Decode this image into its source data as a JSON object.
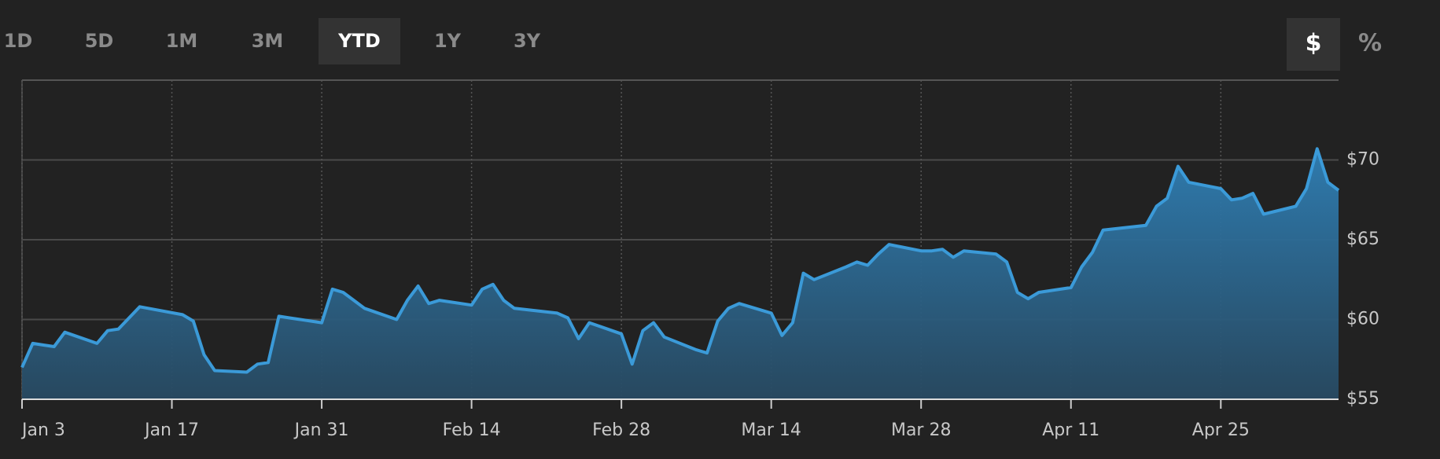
{
  "controls": {
    "ranges": [
      {
        "label": "1D",
        "selected": false
      },
      {
        "label": "5D",
        "selected": false
      },
      {
        "label": "1M",
        "selected": false
      },
      {
        "label": "3M",
        "selected": false
      },
      {
        "label": "YTD",
        "selected": true
      },
      {
        "label": "1Y",
        "selected": false
      },
      {
        "label": "3Y",
        "selected": false
      }
    ],
    "units": [
      {
        "label": "$",
        "selected": true
      },
      {
        "label": "%",
        "selected": false
      }
    ]
  },
  "chart_data": {
    "type": "area",
    "color": "#3b9ad8",
    "x": [
      "Jan 3",
      "Jan 4",
      "Jan 5",
      "Jan 6",
      "Jan 7",
      "Jan 10",
      "Jan 11",
      "Jan 12",
      "Jan 13",
      "Jan 14",
      "Jan 18",
      "Jan 19",
      "Jan 20",
      "Jan 21",
      "Jan 24",
      "Jan 25",
      "Jan 26",
      "Jan 27",
      "Jan 28",
      "Jan 31",
      "Feb 1",
      "Feb 2",
      "Feb 3",
      "Feb 4",
      "Feb 7",
      "Feb 8",
      "Feb 9",
      "Feb 10",
      "Feb 11",
      "Feb 14",
      "Feb 15",
      "Feb 16",
      "Feb 17",
      "Feb 18",
      "Feb 22",
      "Feb 23",
      "Feb 24",
      "Feb 25",
      "Feb 28",
      "Mar 1",
      "Mar 2",
      "Mar 3",
      "Mar 4",
      "Mar 7",
      "Mar 8",
      "Mar 9",
      "Mar 10",
      "Mar 11",
      "Mar 14",
      "Mar 15",
      "Mar 16",
      "Mar 17",
      "Mar 18",
      "Mar 21",
      "Mar 22",
      "Mar 23",
      "Mar 24",
      "Mar 25",
      "Mar 28",
      "Mar 29",
      "Mar 30",
      "Mar 31",
      "Apr 1",
      "Apr 4",
      "Apr 5",
      "Apr 6",
      "Apr 7",
      "Apr 8",
      "Apr 11",
      "Apr 12",
      "Apr 13",
      "Apr 14",
      "Apr 18",
      "Apr 19",
      "Apr 20",
      "Apr 21",
      "Apr 22",
      "Apr 25",
      "Apr 26",
      "Apr 27",
      "Apr 28",
      "Apr 29",
      "May 2",
      "May 3",
      "May 4",
      "May 5",
      "May 6"
    ],
    "values": [
      57.0,
      58.5,
      58.4,
      58.3,
      59.2,
      58.5,
      59.3,
      59.4,
      60.1,
      60.8,
      60.3,
      59.9,
      57.8,
      56.8,
      56.7,
      57.2,
      57.3,
      60.2,
      60.1,
      59.8,
      61.9,
      61.7,
      61.2,
      60.7,
      60.0,
      61.2,
      62.1,
      61.0,
      61.2,
      60.9,
      61.9,
      62.2,
      61.2,
      60.7,
      60.4,
      60.1,
      58.8,
      59.8,
      59.1,
      57.2,
      59.3,
      59.8,
      58.9,
      58.1,
      57.9,
      59.9,
      60.7,
      61.0,
      60.4,
      59.0,
      59.8,
      62.9,
      62.5,
      63.3,
      63.6,
      63.4,
      64.1,
      64.7,
      64.3,
      64.3,
      64.4,
      63.9,
      64.3,
      64.1,
      63.6,
      61.7,
      61.3,
      61.7,
      62.0,
      63.3,
      64.2,
      65.6,
      65.9,
      67.1,
      67.6,
      69.6,
      68.6,
      68.2,
      67.5,
      67.6,
      67.9,
      66.6,
      67.1,
      68.2,
      70.7,
      68.6,
      68.1
    ],
    "xlim": [
      "Jan 3",
      "May 6"
    ],
    "xticks": [
      "Jan 3",
      "Jan 17",
      "Jan 31",
      "Feb 14",
      "Feb 28",
      "Mar 14",
      "Mar 28",
      "Apr 11",
      "Apr 25"
    ],
    "ylim": [
      55,
      75
    ],
    "yticks": [
      {
        "value": 55,
        "label": "$55"
      },
      {
        "value": 60,
        "label": "$60"
      },
      {
        "value": 65,
        "label": "$65"
      },
      {
        "value": 70,
        "label": "$70"
      }
    ],
    "grid": true
  }
}
